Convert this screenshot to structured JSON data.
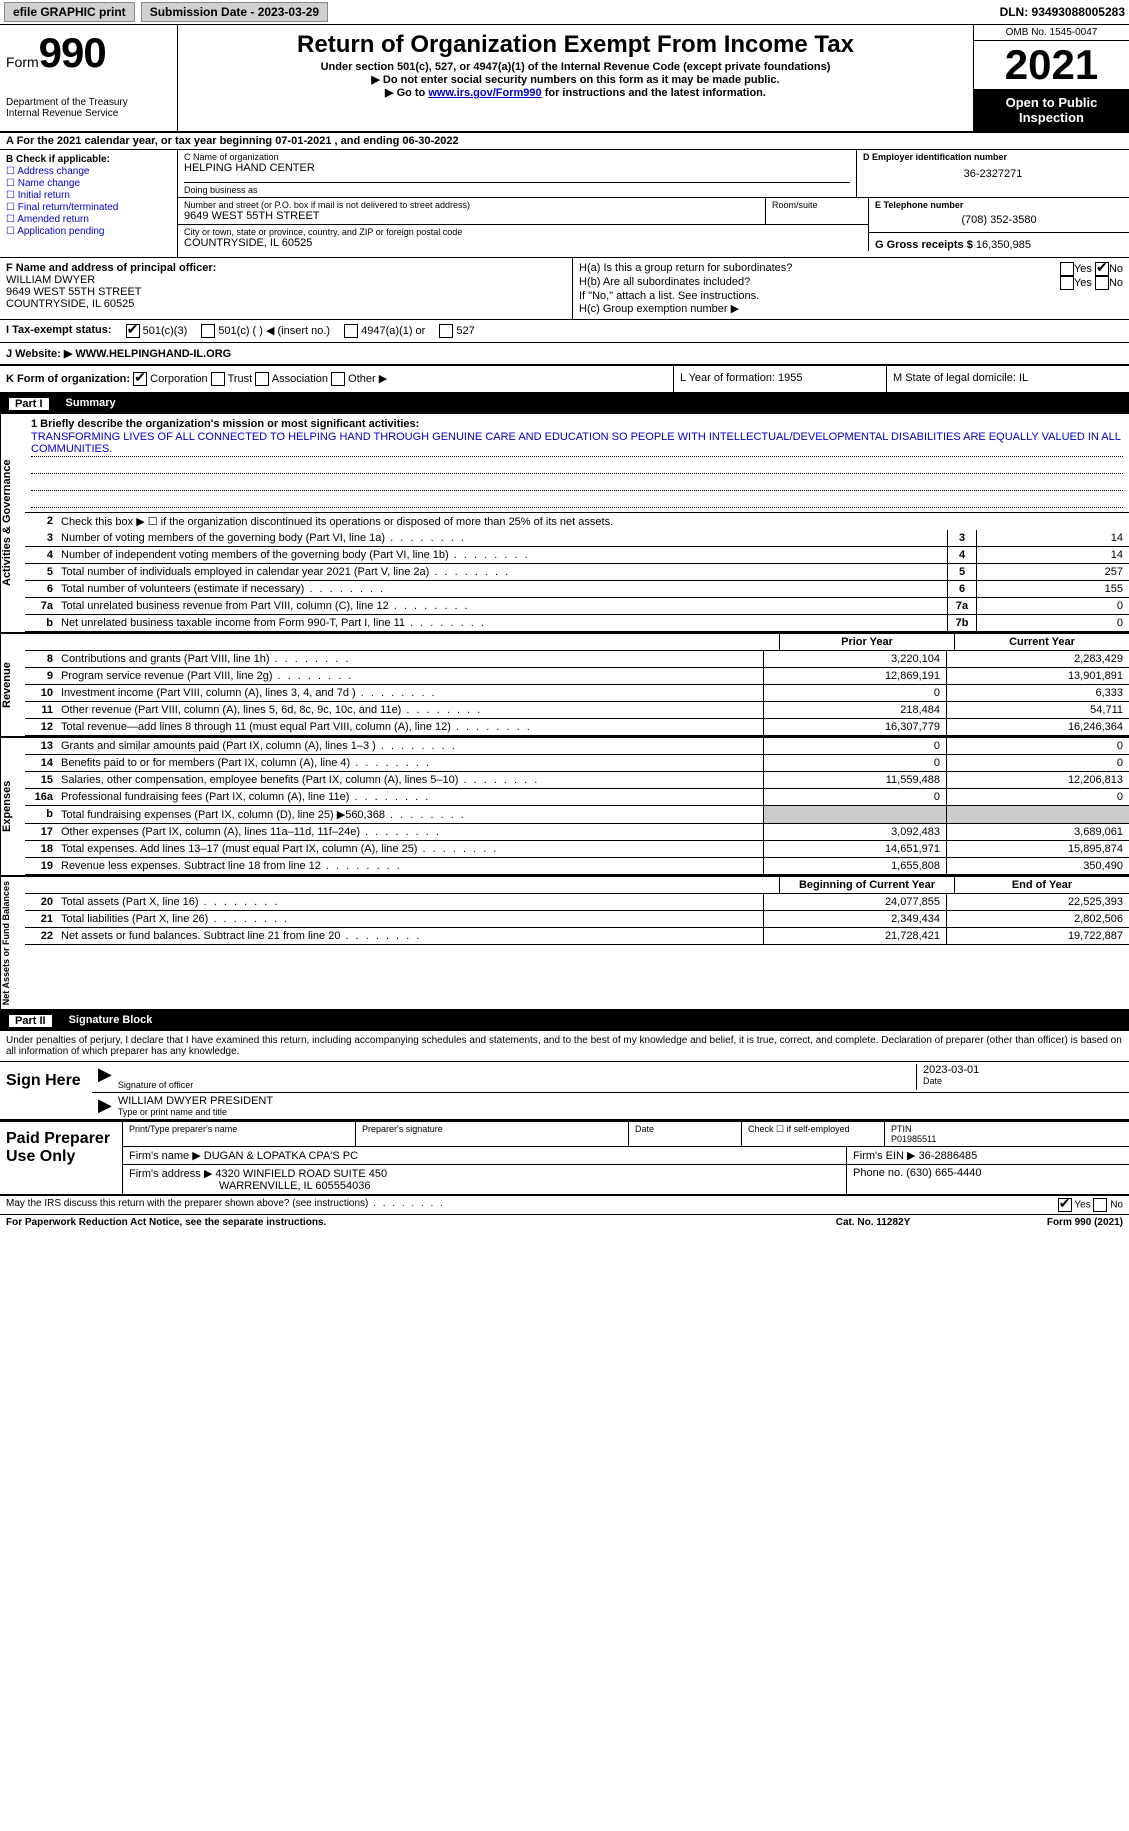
{
  "topbar": {
    "efile": "efile GRAPHIC print",
    "submission_label": "Submission Date - 2023-03-29",
    "dln": "DLN: 93493088005283"
  },
  "header": {
    "form_word": "Form",
    "form_num": "990",
    "dept": "Department of the Treasury",
    "irs": "Internal Revenue Service",
    "title": "Return of Organization Exempt From Income Tax",
    "sub": "Under section 501(c), 527, or 4947(a)(1) of the Internal Revenue Code (except private foundations)",
    "instr1": "▶ Do not enter social security numbers on this form as it may be made public.",
    "instr2_pre": "▶ Go to ",
    "instr2_link": "www.irs.gov/Form990",
    "instr2_post": " for instructions and the latest information.",
    "omb": "OMB No. 1545-0047",
    "year": "2021",
    "open": "Open to Public Inspection"
  },
  "row_a": "A For the 2021 calendar year, or tax year beginning 07-01-2021    , and ending 06-30-2022",
  "col_b": {
    "label": "B Check if applicable:",
    "opts": [
      "Address change",
      "Name change",
      "Initial return",
      "Final return/terminated",
      "Amended return",
      "Application pending"
    ]
  },
  "col_c": {
    "name_label": "C Name of organization",
    "name": "HELPING HAND CENTER",
    "dba_label": "Doing business as",
    "addr_label": "Number and street (or P.O. box if mail is not delivered to street address)",
    "addr": "9649 WEST 55TH STREET",
    "room_label": "Room/suite",
    "city_label": "City or town, state or province, country, and ZIP or foreign postal code",
    "city": "COUNTRYSIDE, IL  60525"
  },
  "col_d": {
    "label": "D Employer identification number",
    "val": "36-2327271",
    "e_label": "E Telephone number",
    "e_val": "(708) 352-3580",
    "g_label": "G Gross receipts $",
    "g_val": "16,350,985"
  },
  "col_f": {
    "label": "F Name and address of principal officer:",
    "name": "WILLIAM DWYER",
    "addr1": "9649 WEST 55TH STREET",
    "addr2": "COUNTRYSIDE, IL  60525"
  },
  "col_h": {
    "ha": "H(a)  Is this a group return for subordinates?",
    "hb": "H(b)  Are all subordinates included?",
    "hb_note": "If \"No,\" attach a list. See instructions.",
    "hc": "H(c)  Group exemption number ▶",
    "yes": "Yes",
    "no": "No"
  },
  "tax_status": {
    "i": "I   Tax-exempt status:",
    "o1": "501(c)(3)",
    "o2": "501(c) (  ) ◀ (insert no.)",
    "o3": "4947(a)(1) or",
    "o4": "527"
  },
  "website": {
    "j": "J   Website: ▶",
    "val": "WWW.HELPINGHAND-IL.ORG"
  },
  "kl": {
    "k": "K Form of organization:",
    "corp": "Corporation",
    "trust": "Trust",
    "assoc": "Association",
    "other": "Other ▶",
    "l": "L Year of formation: 1955",
    "m": "M State of legal domicile: IL"
  },
  "part1": {
    "num": "Part I",
    "title": "Summary"
  },
  "summary": {
    "tabs": [
      "Activities & Governance",
      "Revenue",
      "Expenses",
      "Net Assets or Fund Balances"
    ],
    "l1_label": "1  Briefly describe the organization's mission or most significant activities:",
    "l1_text": "TRANSFORMING LIVES OF ALL CONNECTED TO HELPING HAND THROUGH GENUINE CARE AND EDUCATION SO PEOPLE WITH INTELLECTUAL/DEVELOPMENTAL DISABILITIES ARE EQUALLY VALUED IN ALL COMMUNITIES.",
    "l2": "Check this box ▶ ☐  if the organization discontinued its operations or disposed of more than 25% of its net assets.",
    "lines_a": [
      {
        "n": "3",
        "t": "Number of voting members of the governing body (Part VI, line 1a)",
        "b": "3",
        "v": "14"
      },
      {
        "n": "4",
        "t": "Number of independent voting members of the governing body (Part VI, line 1b)",
        "b": "4",
        "v": "14"
      },
      {
        "n": "5",
        "t": "Total number of individuals employed in calendar year 2021 (Part V, line 2a)",
        "b": "5",
        "v": "257"
      },
      {
        "n": "6",
        "t": "Total number of volunteers (estimate if necessary)",
        "b": "6",
        "v": "155"
      },
      {
        "n": "7a",
        "t": "Total unrelated business revenue from Part VIII, column (C), line 12",
        "b": "7a",
        "v": "0"
      },
      {
        "n": "b",
        "t": "Net unrelated business taxable income from Form 990-T, Part I, line 11",
        "b": "7b",
        "v": "0"
      }
    ],
    "hdr_prior": "Prior Year",
    "hdr_curr": "Current Year",
    "rev": [
      {
        "n": "8",
        "t": "Contributions and grants (Part VIII, line 1h)",
        "p": "3,220,104",
        "c": "2,283,429"
      },
      {
        "n": "9",
        "t": "Program service revenue (Part VIII, line 2g)",
        "p": "12,869,191",
        "c": "13,901,891"
      },
      {
        "n": "10",
        "t": "Investment income (Part VIII, column (A), lines 3, 4, and 7d )",
        "p": "0",
        "c": "6,333"
      },
      {
        "n": "11",
        "t": "Other revenue (Part VIII, column (A), lines 5, 6d, 8c, 9c, 10c, and 11e)",
        "p": "218,484",
        "c": "54,711"
      },
      {
        "n": "12",
        "t": "Total revenue—add lines 8 through 11 (must equal Part VIII, column (A), line 12)",
        "p": "16,307,779",
        "c": "16,246,364"
      }
    ],
    "exp": [
      {
        "n": "13",
        "t": "Grants and similar amounts paid (Part IX, column (A), lines 1–3 )",
        "p": "0",
        "c": "0"
      },
      {
        "n": "14",
        "t": "Benefits paid to or for members (Part IX, column (A), line 4)",
        "p": "0",
        "c": "0"
      },
      {
        "n": "15",
        "t": "Salaries, other compensation, employee benefits (Part IX, column (A), lines 5–10)",
        "p": "11,559,488",
        "c": "12,206,813"
      },
      {
        "n": "16a",
        "t": "Professional fundraising fees (Part IX, column (A), line 11e)",
        "p": "0",
        "c": "0"
      },
      {
        "n": "b",
        "t": "Total fundraising expenses (Part IX, column (D), line 25) ▶560,368",
        "p": "",
        "c": "",
        "shaded": true
      },
      {
        "n": "17",
        "t": "Other expenses (Part IX, column (A), lines 11a–11d, 11f–24e)",
        "p": "3,092,483",
        "c": "3,689,061"
      },
      {
        "n": "18",
        "t": "Total expenses. Add lines 13–17 (must equal Part IX, column (A), line 25)",
        "p": "14,651,971",
        "c": "15,895,874"
      },
      {
        "n": "19",
        "t": "Revenue less expenses. Subtract line 18 from line 12",
        "p": "1,655,808",
        "c": "350,490"
      }
    ],
    "hdr_boy": "Beginning of Current Year",
    "hdr_eoy": "End of Year",
    "net": [
      {
        "n": "20",
        "t": "Total assets (Part X, line 16)",
        "p": "24,077,855",
        "c": "22,525,393"
      },
      {
        "n": "21",
        "t": "Total liabilities (Part X, line 26)",
        "p": "2,349,434",
        "c": "2,802,506"
      },
      {
        "n": "22",
        "t": "Net assets or fund balances. Subtract line 21 from line 20",
        "p": "21,728,421",
        "c": "19,722,887"
      }
    ]
  },
  "part2": {
    "num": "Part II",
    "title": "Signature Block"
  },
  "sig": {
    "decl": "Under penalties of perjury, I declare that I have examined this return, including accompanying schedules and statements, and to the best of my knowledge and belief, it is true, correct, and complete. Declaration of preparer (other than officer) is based on all information of which preparer has any knowledge.",
    "sign_here": "Sign Here",
    "sig_officer": "Signature of officer",
    "date": "Date",
    "date_val": "2023-03-01",
    "name_title": "WILLIAM DWYER  PRESIDENT",
    "name_label": "Type or print name and title"
  },
  "paid": {
    "label": "Paid Preparer Use Only",
    "h1": "Print/Type preparer's name",
    "h2": "Preparer's signature",
    "h3": "Date",
    "h4_a": "Check ☐ if self-employed",
    "h4_b": "PTIN",
    "ptin": "P01985511",
    "firm_name_l": "Firm's name    ▶",
    "firm_name": "DUGAN & LOPATKA CPA'S PC",
    "firm_ein_l": "Firm's EIN ▶",
    "firm_ein": "36-2886485",
    "firm_addr_l": "Firm's address ▶",
    "firm_addr1": "4320 WINFIELD ROAD SUITE 450",
    "firm_addr2": "WARRENVILLE, IL  605554036",
    "phone_l": "Phone no.",
    "phone": "(630) 665-4440"
  },
  "footer": {
    "may": "May the IRS discuss this return with the preparer shown above? (see instructions)",
    "yes": "Yes",
    "no": "No",
    "paperwork": "For Paperwork Reduction Act Notice, see the separate instructions.",
    "cat": "Cat. No. 11282Y",
    "form": "Form 990 (2021)"
  }
}
